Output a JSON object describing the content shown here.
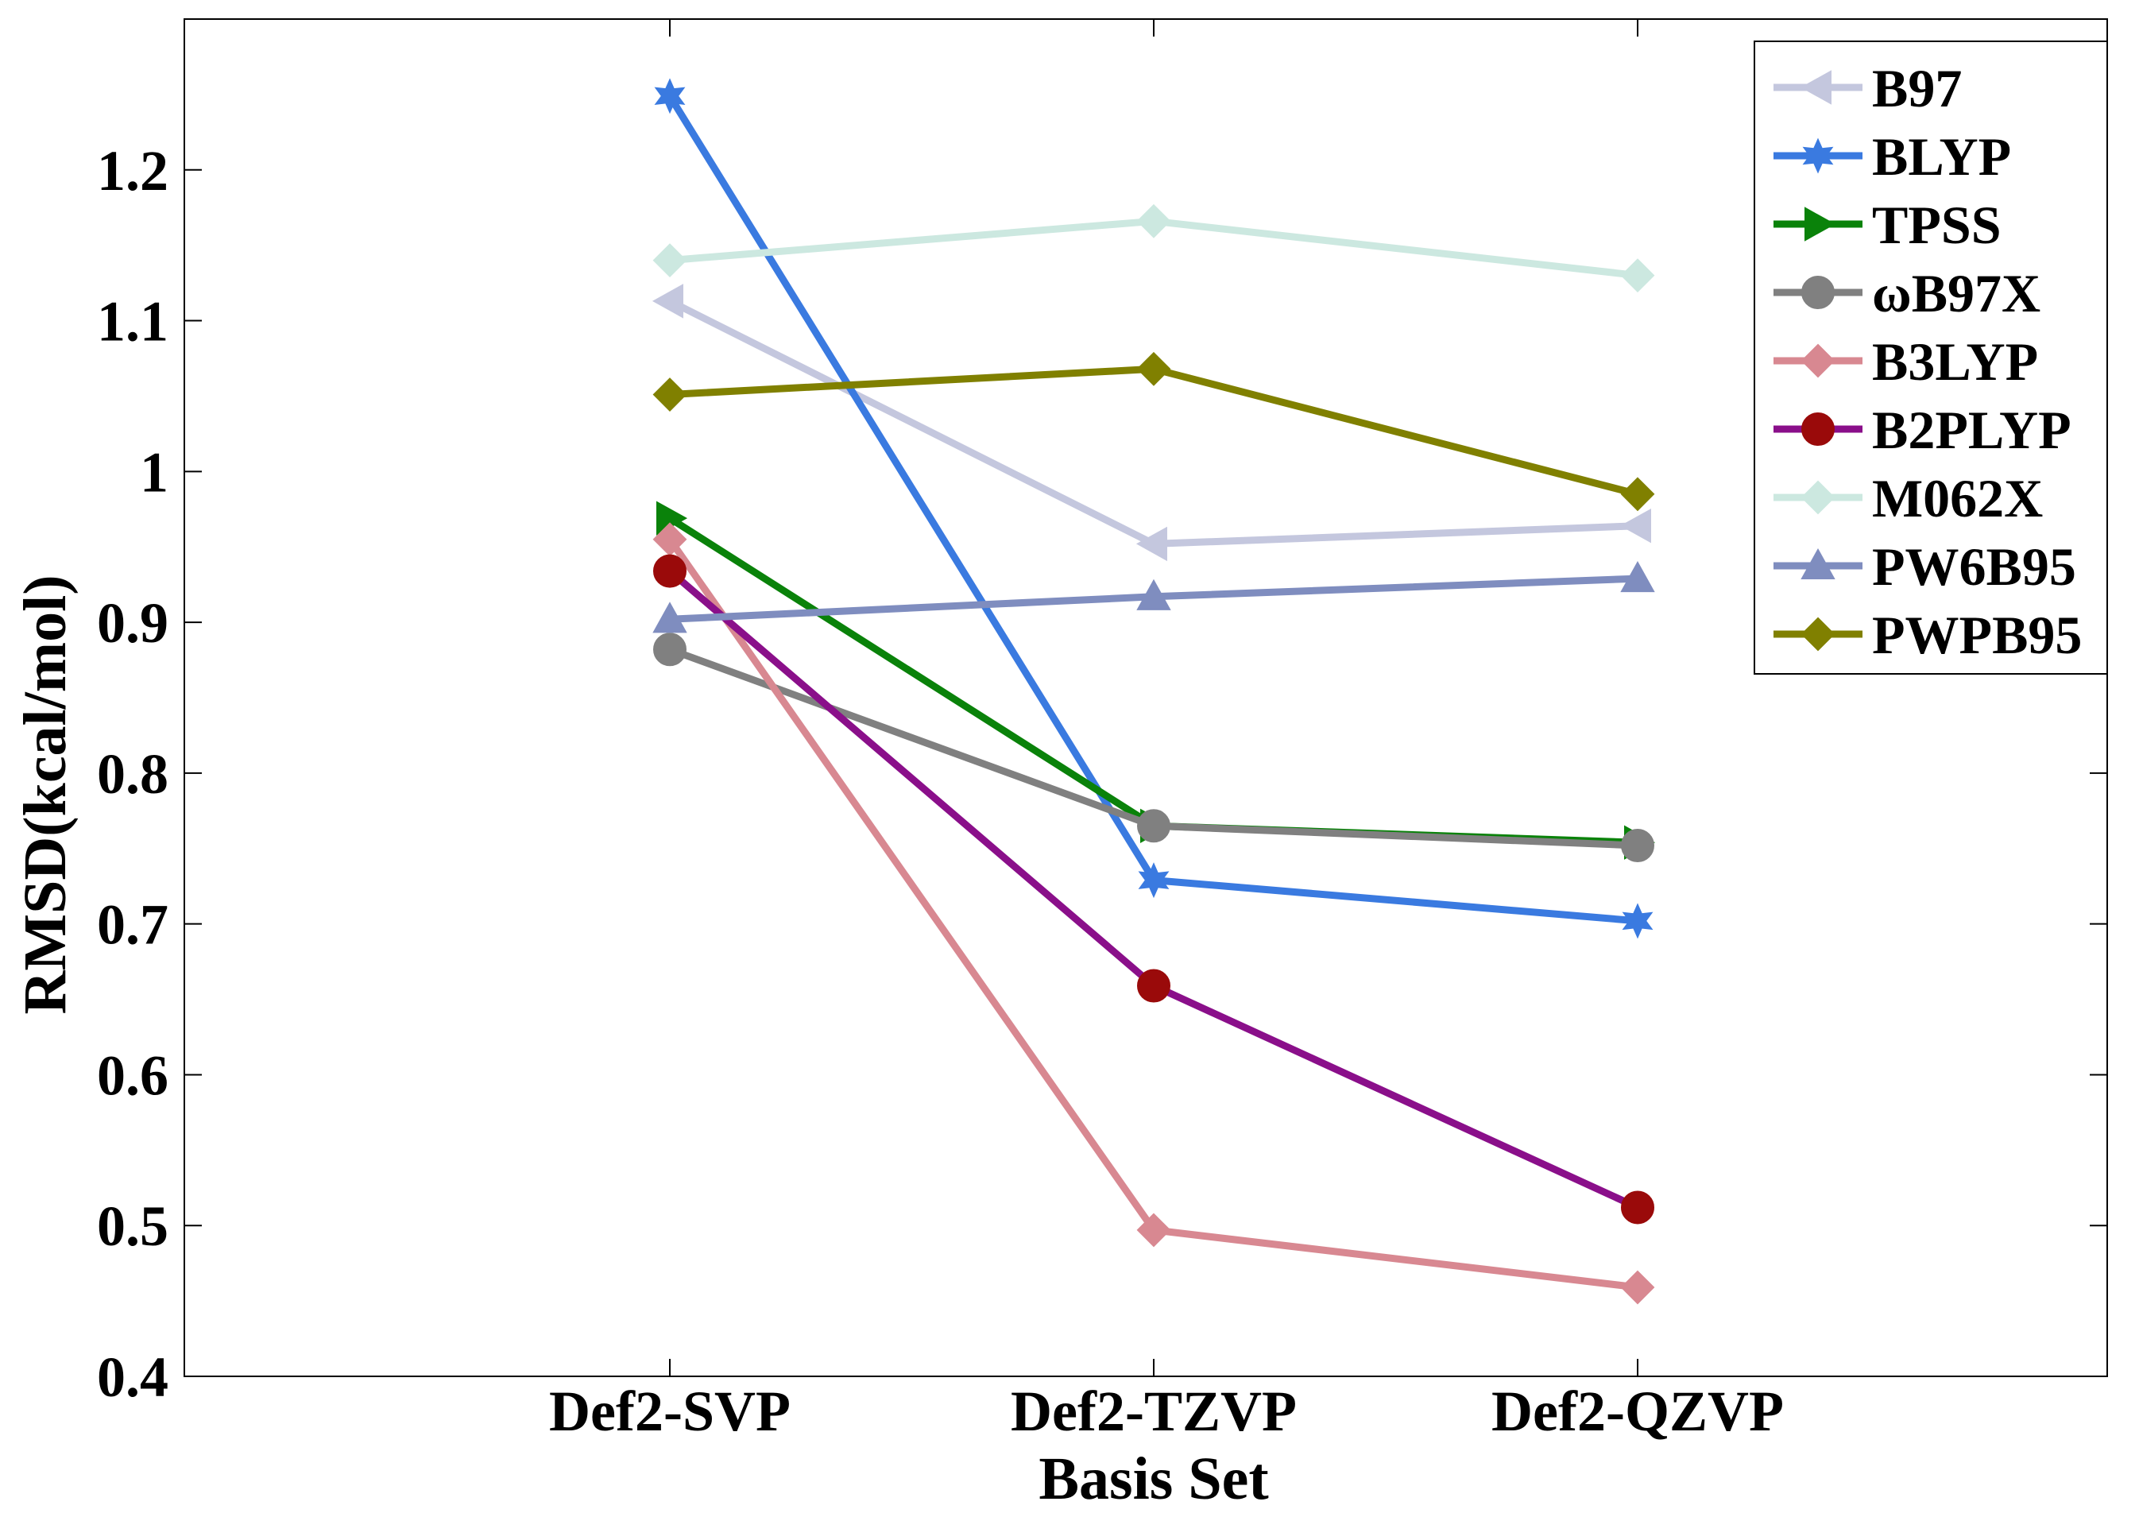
{
  "chart_data": {
    "type": "line",
    "title": "",
    "xlabel": "Basis Set",
    "ylabel": "RMSD(kcal/mol)",
    "categories": [
      "Def2-SVP",
      "Def2-TZVP",
      "Def2-QZVP"
    ],
    "ylim": [
      0.4,
      1.3
    ],
    "yticks": [
      0.4,
      0.5,
      0.6,
      0.7,
      0.8,
      0.9,
      1.0,
      1.1,
      1.2
    ],
    "ytick_labels": [
      "0.4",
      "0.5",
      "0.6",
      "0.7",
      "0.8",
      "0.9",
      "1",
      "1.1",
      "1.2"
    ],
    "grid": false,
    "legend_position": "top-right",
    "series": [
      {
        "name": "B97",
        "color": "#c4c7de",
        "marker": "triangle-left",
        "values": [
          1.113,
          0.952,
          0.964
        ]
      },
      {
        "name": "BLYP",
        "color": "#3a7ae0",
        "marker": "star",
        "values": [
          1.249,
          0.729,
          0.702
        ]
      },
      {
        "name": "TPSS",
        "color": "#0a820a",
        "marker": "triangle-right",
        "values": [
          0.969,
          0.765,
          0.754
        ]
      },
      {
        "name": "ωB97X",
        "color": "#808080",
        "marker": "circle",
        "values": [
          0.882,
          0.765,
          0.752
        ]
      },
      {
        "name": "B3LYP",
        "color": "#d88891",
        "marker": "diamond",
        "values": [
          0.955,
          0.497,
          0.459
        ]
      },
      {
        "name": "B2PLYP",
        "color": "#8a0f8a",
        "marker_color": "#9a0a0a",
        "marker": "circle",
        "values": [
          0.934,
          0.659,
          0.512
        ]
      },
      {
        "name": "M062X",
        "color": "#cce8e0",
        "marker": "diamond",
        "values": [
          1.14,
          1.166,
          1.13
        ]
      },
      {
        "name": "PW6B95",
        "color": "#7f8dbf",
        "marker": "triangle-up",
        "values": [
          0.902,
          0.917,
          0.929
        ]
      },
      {
        "name": "PWPB95",
        "color": "#808000",
        "marker": "diamond",
        "values": [
          1.051,
          1.068,
          0.985
        ]
      }
    ]
  }
}
